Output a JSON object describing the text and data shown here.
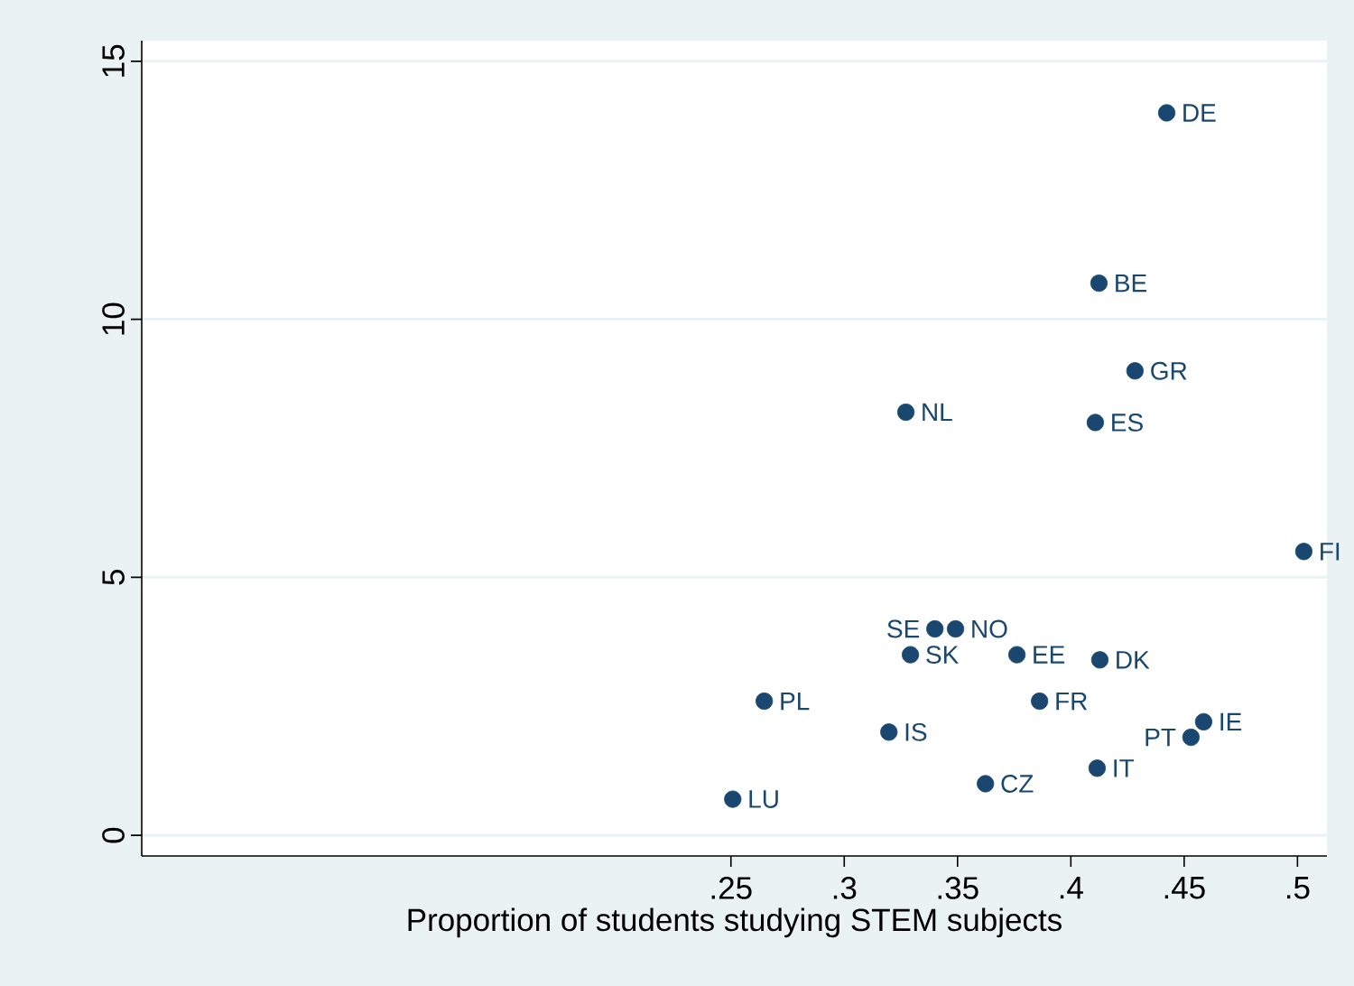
{
  "chart_data": {
    "type": "scatter",
    "xlabel": "Proportion of students studying STEM subjects",
    "x": [
      0.4423,
      0.4124,
      0.4283,
      0.3272,
      0.4108,
      0.5028,
      0.34,
      0.3491,
      0.3292,
      0.3762,
      0.4128,
      0.2647,
      0.3862,
      0.4586,
      0.453,
      0.3197,
      0.4116,
      0.3623,
      0.2508
    ],
    "series": [
      {
        "color": "#1a476f",
        "values": [
          14.0,
          10.7,
          9.0,
          8.2,
          8.0,
          5.5,
          4.0,
          4.0,
          3.5,
          3.5,
          3.4,
          2.6,
          2.6,
          2.2,
          1.9,
          2.0,
          1.3,
          1.0,
          0.7
        ]
      }
    ],
    "annotations": [
      {
        "text": "DE",
        "x": 0.4423,
        "y": 14.0
      },
      {
        "text": "BE",
        "x": 0.4124,
        "y": 10.7
      },
      {
        "text": "GR",
        "x": 0.4283,
        "y": 9.0
      },
      {
        "text": "NL",
        "x": 0.3272,
        "y": 8.2
      },
      {
        "text": "ES",
        "x": 0.4108,
        "y": 8.0
      },
      {
        "text": "FI",
        "x": 0.5028,
        "y": 5.5
      },
      {
        "text": "SE",
        "x": 0.34,
        "y": 4.0
      },
      {
        "text": "NO",
        "x": 0.3491,
        "y": 4.0
      },
      {
        "text": "SK",
        "x": 0.3292,
        "y": 3.5
      },
      {
        "text": "EE",
        "x": 0.3762,
        "y": 3.5
      },
      {
        "text": "DK",
        "x": 0.4128,
        "y": 3.4
      },
      {
        "text": "PL",
        "x": 0.2647,
        "y": 2.6
      },
      {
        "text": "FR",
        "x": 0.3862,
        "y": 2.6
      },
      {
        "text": "IE",
        "x": 0.4586,
        "y": 2.2
      },
      {
        "text": "PT",
        "x": 0.453,
        "y": 1.9
      },
      {
        "text": "IS",
        "x": 0.3197,
        "y": 2.0
      },
      {
        "text": "IT",
        "x": 0.4116,
        "y": 1.3
      },
      {
        "text": "CZ",
        "x": 0.3623,
        "y": 1.0
      },
      {
        "text": "LU",
        "x": 0.2508,
        "y": 0.7
      }
    ],
    "xlim": [
      -0.01,
      0.513
    ],
    "ylim": [
      -0.4,
      15.4
    ],
    "xticks": [
      {
        "value": 0.25,
        "label": ".25"
      },
      {
        "value": 0.3,
        "label": ".3"
      },
      {
        "value": 0.35,
        "label": ".35"
      },
      {
        "value": 0.4,
        "label": ".4"
      },
      {
        "value": 0.45,
        "label": ".45"
      },
      {
        "value": 0.5,
        "label": ".5"
      }
    ],
    "yticks": [
      0,
      5,
      10,
      15
    ],
    "grid": "y"
  }
}
